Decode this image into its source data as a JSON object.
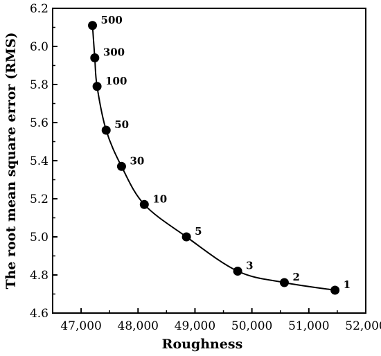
{
  "chart_data": {
    "type": "line",
    "title": "",
    "xlabel": "Roughness",
    "ylabel": "The root mean square error (RMS)",
    "xlim": [
      46500,
      52000
    ],
    "ylim": [
      4.6,
      6.2
    ],
    "x_ticks": [
      47000,
      48000,
      49000,
      50000,
      51000,
      52000
    ],
    "x_tick_labels": [
      "47,000",
      "48,000",
      "49,000",
      "50,000",
      "51,000",
      "52,000"
    ],
    "y_ticks": [
      4.6,
      4.8,
      5.0,
      5.2,
      5.4,
      5.6,
      5.8,
      6.0,
      6.2
    ],
    "y_tick_labels": [
      "4.6",
      "4.8",
      "5.0",
      "5.2",
      "5.4",
      "5.6",
      "5.8",
      "6.0",
      "6.2"
    ],
    "grid": false,
    "series": [
      {
        "points": [
          {
            "x": 47200,
            "y": 6.11,
            "label": "500"
          },
          {
            "x": 47240,
            "y": 5.94,
            "label": "300"
          },
          {
            "x": 47280,
            "y": 5.79,
            "label": "100"
          },
          {
            "x": 47440,
            "y": 5.56,
            "label": "50"
          },
          {
            "x": 47710,
            "y": 5.37,
            "label": "30"
          },
          {
            "x": 48110,
            "y": 5.17,
            "label": "10"
          },
          {
            "x": 48850,
            "y": 5.0,
            "label": "5"
          },
          {
            "x": 49750,
            "y": 4.82,
            "label": "3"
          },
          {
            "x": 50570,
            "y": 4.76,
            "label": "2"
          },
          {
            "x": 51460,
            "y": 4.72,
            "label": "1"
          }
        ]
      }
    ]
  }
}
